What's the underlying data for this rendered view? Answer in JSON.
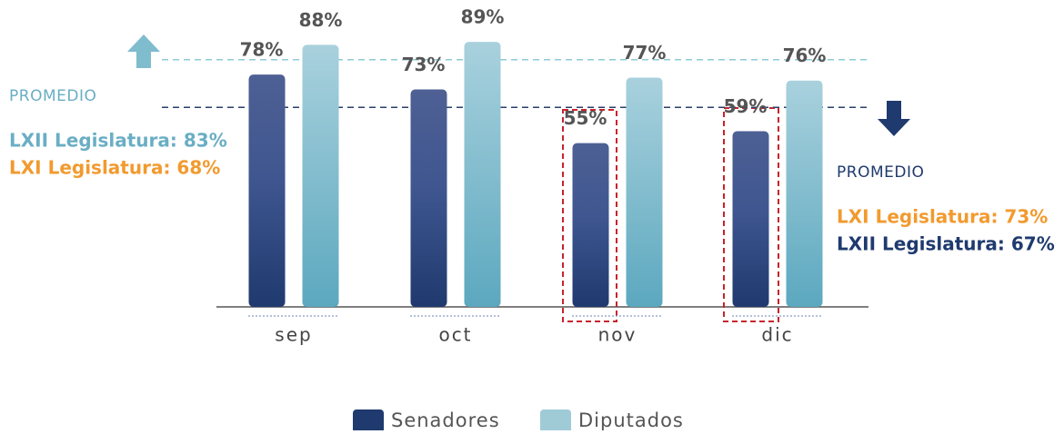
{
  "chart_data": {
    "type": "bar",
    "categories": [
      "sep",
      "oct",
      "nov",
      "dic"
    ],
    "series": [
      {
        "name": "Senadores",
        "color": "#1f3a6e",
        "values": [
          78,
          73,
          55,
          59
        ],
        "value_labels": [
          "78%",
          "73%",
          "55%",
          "59%"
        ]
      },
      {
        "name": "Diputados",
        "color": "#7fbccd",
        "values": [
          88,
          89,
          77,
          76
        ],
        "value_labels": [
          "88%",
          "89%",
          "77%",
          "76%"
        ]
      }
    ],
    "ylim": [
      0,
      100
    ],
    "reference_lines": [
      {
        "value": 83,
        "color": "#8ccbd6"
      },
      {
        "value": 67,
        "color": "#2a3f6a"
      }
    ],
    "annotations": {
      "left": {
        "heading": "PROMEDIO",
        "lines": [
          "LXII Legislatura: 83%",
          "LXI Legislatura: 68%"
        ]
      },
      "right": {
        "heading": "PROMEDIO",
        "lines": [
          "LXI Legislatura: 73%",
          "LXII Legislatura: 67%"
        ]
      }
    }
  }
}
